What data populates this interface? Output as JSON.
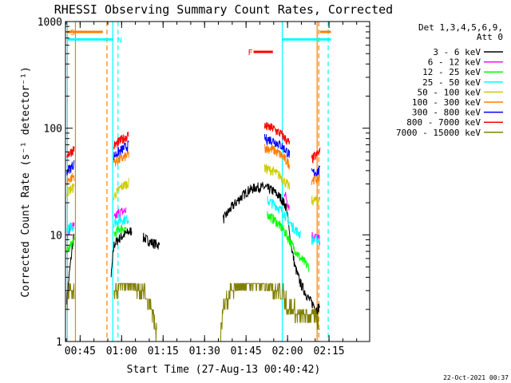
{
  "chart_data": {
    "type": "line",
    "title": "RHESSI Observing Summary Count Rates, Corrected",
    "xlabel": "Start Time (27-Aug-13 00:40:42)",
    "ylabel": "Corrected Count Rate (s⁻¹ detector⁻¹)",
    "x_unit": "minutes after 00:40:42 UT",
    "xlim": [
      -1,
      109
    ],
    "ylim": [
      1,
      1000
    ],
    "yscale": "log",
    "x_ticks": [
      {
        "t": 4.3,
        "label": "00:45"
      },
      {
        "t": 19.3,
        "label": "01:00"
      },
      {
        "t": 34.3,
        "label": "01:15"
      },
      {
        "t": 49.3,
        "label": "01:30"
      },
      {
        "t": 64.3,
        "label": "01:45"
      },
      {
        "t": 79.3,
        "label": "02:00"
      },
      {
        "t": 94.3,
        "label": "02:15"
      }
    ],
    "y_ticks": [
      {
        "v": 1,
        "label": "1"
      },
      {
        "v": 10,
        "label": "10"
      },
      {
        "v": 100,
        "label": "100"
      },
      {
        "v": 1000,
        "label": "1000"
      }
    ],
    "legend": {
      "header_line1": "Det 1,3,4,5,6,9,",
      "header_line2": "Att 0",
      "position": "right"
    },
    "series": [
      {
        "name": "3 - 6 keV",
        "color": "#000000",
        "x": [
          -0.5,
          0.5,
          1.5,
          2.2,
          15.5,
          16.5,
          18.0,
          20.0,
          23.0,
          27.0,
          30.0,
          33.0,
          37.0,
          42.0,
          47.0,
          52.0,
          56.0,
          59.0,
          62.0,
          65.0,
          68.0,
          71.0,
          74.0,
          77.0,
          79.0,
          80.0,
          82.0,
          84.0,
          87.0,
          90.0,
          91.0
        ],
        "y": [
          2.5,
          4.5,
          8,
          10,
          4,
          8,
          9,
          10,
          11,
          9.5,
          8.5,
          8,
          9,
          10,
          11,
          12,
          14,
          18,
          22,
          26,
          28,
          28,
          26,
          22,
          18,
          10,
          5,
          3.5,
          2.5,
          2,
          2.2
        ]
      },
      {
        "name": "6 - 12 keV",
        "color": "#ff00ff",
        "x": [
          -0.5,
          1.0,
          2.2,
          16.5,
          18.0,
          21.0,
          25.0,
          30.0,
          35.0,
          40.0,
          45.0,
          50.0,
          55.0,
          60.0,
          65.0,
          70.0,
          74.0,
          78.0,
          80.0,
          84.0,
          88.0,
          91.0
        ],
        "y": [
          10,
          12,
          12,
          14,
          16,
          17,
          16,
          15,
          14,
          13,
          13,
          14,
          17,
          21,
          26,
          30,
          30,
          26,
          18,
          12,
          10,
          9
        ]
      },
      {
        "name": "12 - 25 keV",
        "color": "#00ff00",
        "x": [
          -0.5,
          1.0,
          2.2,
          16.5,
          18.5,
          21.0,
          25.0,
          29.0,
          33.0,
          37.0,
          42.0,
          47.0,
          52.0,
          56.0,
          60.0,
          64.0,
          68.0,
          72.0,
          75.0,
          78.0,
          81.0,
          84.0,
          87.0,
          91.0
        ],
        "y": [
          7,
          8,
          9,
          10,
          11.5,
          11.5,
          10,
          8,
          6.5,
          5.5,
          4.5,
          4.5,
          5.5,
          7,
          9.5,
          12.5,
          15,
          15.5,
          13.5,
          11,
          8,
          6,
          5,
          4.5
        ]
      },
      {
        "name": "25 - 50 keV",
        "color": "#00ffff",
        "x": [
          -0.5,
          1.0,
          2.2,
          16.5,
          19.0,
          22.0,
          26.0,
          30.0,
          34.0,
          38.0,
          42.0,
          47.0,
          52.0,
          56.0,
          60.0,
          64.0,
          68.0,
          72.0,
          75.0,
          78.0,
          81.0,
          84.0,
          88.0,
          91.0
        ],
        "y": [
          11,
          12,
          12,
          13,
          14,
          14,
          13,
          11,
          9.5,
          8.5,
          8,
          8,
          8.5,
          10,
          13,
          17,
          20,
          21,
          19,
          16,
          12,
          10,
          9,
          9
        ]
      },
      {
        "name": "50 - 100 keV",
        "color": "#cccc00",
        "x": [
          -0.5,
          1.0,
          2.2,
          16.5,
          19.0,
          22.0,
          26.0,
          30.0,
          35.0,
          40.0,
          45.0,
          50.0,
          55.0,
          59.0,
          63.0,
          67.0,
          71.0,
          74.0,
          77.0,
          80.0,
          84.0,
          88.0,
          91.0
        ],
        "y": [
          25,
          27,
          28,
          23,
          28,
          31,
          30,
          27,
          24,
          22,
          22,
          23,
          26,
          31,
          37,
          41,
          42,
          40,
          35,
          28,
          24,
          21,
          21
        ]
      },
      {
        "name": "100 - 300 keV",
        "color": "#ff7f00",
        "x": [
          -0.5,
          1.0,
          2.2,
          16.5,
          19.0,
          22.0,
          26.0,
          30.0,
          35.0,
          40.0,
          45.0,
          50.0,
          55.0,
          59.0,
          63.0,
          67.0,
          71.0,
          74.0,
          77.0,
          80.0,
          84.0,
          88.0,
          91.0
        ],
        "y": [
          32,
          34,
          36,
          48,
          51,
          57,
          59,
          55,
          46,
          38,
          35,
          36,
          41,
          48,
          57,
          64,
          66,
          63,
          56,
          46,
          39,
          33,
          34
        ]
      },
      {
        "name": "300 - 800 keV",
        "color": "#0000ff",
        "x": [
          -0.5,
          1.0,
          2.2,
          16.5,
          19.0,
          22.0,
          26.0,
          30.0,
          35.0,
          40.0,
          45.0,
          50.0,
          55.0,
          59.0,
          63.0,
          67.0,
          71.0,
          74.0,
          77.0,
          80.0,
          84.0,
          88.0,
          91.0
        ],
        "y": [
          40,
          43,
          47,
          55,
          62,
          70,
          73,
          68,
          58,
          48,
          43,
          44,
          50,
          59,
          69,
          77,
          80,
          77,
          69,
          57,
          46,
          38,
          40
        ]
      },
      {
        "name": "800 - 7000 keV",
        "color": "#ff0000",
        "x": [
          -0.5,
          1.0,
          2.2,
          16.5,
          19.0,
          22.0,
          26.0,
          30.0,
          35.0,
          40.0,
          45.0,
          50.0,
          55.0,
          59.0,
          63.0,
          67.0,
          71.0,
          74.0,
          77.0,
          80.0,
          84.0,
          88.0,
          91.0
        ],
        "y": [
          57,
          60,
          65,
          68,
          77,
          87,
          92,
          85,
          71,
          58,
          51,
          52,
          58,
          70,
          85,
          98,
          104,
          100,
          88,
          72,
          58,
          51,
          60
        ]
      },
      {
        "name": "7000 - 15000 keV",
        "color": "#808000",
        "x": [
          -0.5,
          0.5,
          1.5,
          2.2,
          16.5,
          18.0,
          20.0,
          22.0,
          24.0,
          26.0,
          28.0,
          30.0,
          31.0,
          32.0,
          55.0,
          56.0,
          58.0,
          60.0,
          62.0,
          64.0,
          66.0,
          68.0,
          70.0,
          72.0,
          74.0,
          76.0,
          78.0,
          79.0,
          80.0,
          82.0,
          84.0,
          86.0,
          88.0,
          90.0,
          91.0
        ],
        "y": [
          2,
          3.5,
          2.5,
          3,
          2.5,
          3,
          3.5,
          3.5,
          3,
          3,
          2.5,
          2,
          1.5,
          1,
          1,
          1.8,
          2.5,
          3,
          3.5,
          3.5,
          3.5,
          3,
          3.5,
          3.5,
          3,
          3,
          2.5,
          2,
          2,
          1.8,
          1.8,
          1.8,
          1.8,
          1.5,
          1.3
        ]
      }
    ],
    "vertical_lines": [
      {
        "t": -0.3,
        "color": "#00ffff",
        "dash": false
      },
      {
        "t": 2.6,
        "color": "#ff7f00",
        "dash": false
      },
      {
        "t": 14.0,
        "color": "#ff7f00",
        "dash": true
      },
      {
        "t": 16.1,
        "color": "#00ffff",
        "dash": false
      },
      {
        "t": 18.0,
        "color": "#00ffff",
        "dash": true
      },
      {
        "t": 77.4,
        "color": "#00ffff",
        "dash": false
      },
      {
        "t": 90.0,
        "color": "#ff7f00",
        "dash": false
      },
      {
        "t": 90.6,
        "color": "#ff7f00",
        "dash": true
      },
      {
        "t": 94.0,
        "color": "#00ffff",
        "dash": true
      }
    ],
    "flag_bars": [
      {
        "label": "S",
        "color": "#ff7f00",
        "t0": -0.5,
        "t1": 12.5,
        "v": 800
      },
      {
        "label": "N",
        "color": "#00ffff",
        "t0": -0.5,
        "t1": 16.0,
        "v": 680
      },
      {
        "label": "F",
        "color": "#ff0000",
        "t0": 67.0,
        "t1": 74.0,
        "v": 520
      },
      {
        "label": "",
        "color": "#00ffff",
        "t0": 77.4,
        "t1": 95.0,
        "v": 680
      },
      {
        "label": "",
        "color": "#ff7f00",
        "t0": 91.0,
        "t1": 95.0,
        "v": 800
      }
    ]
  },
  "footer": {
    "timestamp": "22-Oct-2021 00:37"
  }
}
